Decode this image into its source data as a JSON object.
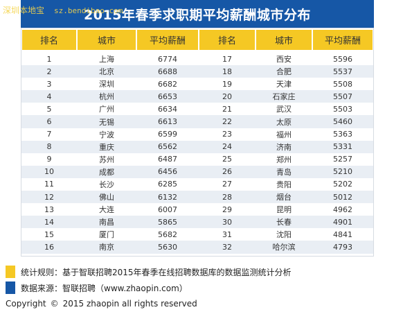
{
  "watermark": {
    "site": "深圳本地宝",
    "url": "sz.bendibao.com"
  },
  "title": "2015年春季求职期平均薪酬城市分布",
  "headers": [
    "排名",
    "城市",
    "平均薪酬",
    "排名",
    "城市",
    "平均薪酬"
  ],
  "rows": [
    {
      "r1": "1",
      "c1": "上海",
      "s1": "6774",
      "r2": "17",
      "c2": "西安",
      "s2": "5596"
    },
    {
      "r1": "2",
      "c1": "北京",
      "s1": "6688",
      "r2": "18",
      "c2": "合肥",
      "s2": "5537"
    },
    {
      "r1": "3",
      "c1": "深圳",
      "s1": "6682",
      "r2": "19",
      "c2": "天津",
      "s2": "5508"
    },
    {
      "r1": "4",
      "c1": "杭州",
      "s1": "6653",
      "r2": "20",
      "c2": "石家庄",
      "s2": "5507"
    },
    {
      "r1": "5",
      "c1": "广州",
      "s1": "6634",
      "r2": "21",
      "c2": "武汉",
      "s2": "5503"
    },
    {
      "r1": "6",
      "c1": "无锡",
      "s1": "6613",
      "r2": "22",
      "c2": "太原",
      "s2": "5460"
    },
    {
      "r1": "7",
      "c1": "宁波",
      "s1": "6599",
      "r2": "23",
      "c2": "福州",
      "s2": "5363"
    },
    {
      "r1": "8",
      "c1": "重庆",
      "s1": "6562",
      "r2": "24",
      "c2": "济南",
      "s2": "5331"
    },
    {
      "r1": "9",
      "c1": "苏州",
      "s1": "6487",
      "r2": "25",
      "c2": "郑州",
      "s2": "5257"
    },
    {
      "r1": "10",
      "c1": "成都",
      "s1": "6456",
      "r2": "26",
      "c2": "青岛",
      "s2": "5210"
    },
    {
      "r1": "11",
      "c1": "长沙",
      "s1": "6285",
      "r2": "27",
      "c2": "贵阳",
      "s2": "5202"
    },
    {
      "r1": "12",
      "c1": "佛山",
      "s1": "6132",
      "r2": "28",
      "c2": "烟台",
      "s2": "5012"
    },
    {
      "r1": "13",
      "c1": "大连",
      "s1": "6007",
      "r2": "29",
      "c2": "昆明",
      "s2": "4962"
    },
    {
      "r1": "14",
      "c1": "南昌",
      "s1": "5865",
      "r2": "30",
      "c2": "长春",
      "s2": "4901"
    },
    {
      "r1": "15",
      "c1": "厦门",
      "s1": "5682",
      "r2": "31",
      "c2": "沈阳",
      "s2": "4841"
    },
    {
      "r1": "16",
      "c1": "南京",
      "s1": "5630",
      "r2": "32",
      "c2": "哈尔滨",
      "s2": "4793"
    }
  ],
  "notes": {
    "rule": "统计规则：基于智联招聘2015年春季在线招聘数据库的数据监测统计分析",
    "source": "数据来源：智联招聘（www.zhaopin.com）"
  },
  "copyright": {
    "label": "Copyright",
    "symbol": "©",
    "text": "2015 zhaopin all rights reserved"
  },
  "colors": {
    "title_bg": "#1657a6",
    "header_bg": "#f5c824",
    "stripe": "#e9eef4"
  }
}
